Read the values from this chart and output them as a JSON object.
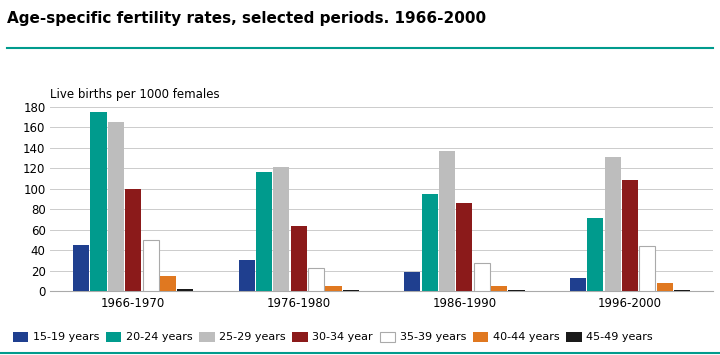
{
  "title": "Age-specific fertility rates, selected periods. 1966-2000",
  "ylabel": "Live births per 1000 females",
  "periods": [
    "1966-1970",
    "1976-1980",
    "1986-1990",
    "1996-2000"
  ],
  "age_groups": [
    "15-19 years",
    "20-24 years",
    "25-29 years",
    "30-34 year",
    "35-39 years",
    "40-44 years",
    "45-49 years"
  ],
  "colors": [
    "#1f3f8f",
    "#009b8d",
    "#bdbdbd",
    "#8b1a1a",
    "#ffffff",
    "#e07820",
    "#1a1a1a"
  ],
  "data": {
    "1966-1970": [
      45,
      175,
      165,
      100,
      50,
      15,
      2
    ],
    "1976-1980": [
      30,
      116,
      121,
      63,
      23,
      5,
      1
    ],
    "1986-1990": [
      19,
      95,
      137,
      86,
      27,
      5,
      1
    ],
    "1996-2000": [
      13,
      71,
      131,
      108,
      44,
      8,
      1
    ]
  },
  "ylim": [
    0,
    180
  ],
  "yticks": [
    0,
    20,
    40,
    60,
    80,
    100,
    120,
    140,
    160,
    180
  ],
  "bar_width": 0.105,
  "title_fontsize": 11,
  "axis_fontsize": 8.5,
  "legend_fontsize": 8.5,
  "background_color": "#ffffff",
  "grid_color": "#cccccc",
  "teal_line_color": "#009b8d",
  "bottom_teal_color": "#009b8d"
}
